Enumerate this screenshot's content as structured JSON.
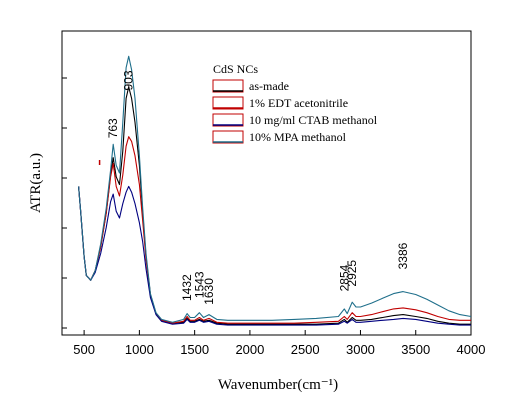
{
  "chart_data": {
    "type": "line",
    "xlabel": "Wavenumber(cm⁻¹)",
    "ylabel": "ATR(a.u.)",
    "xlim": [
      300,
      4000
    ],
    "x_ticks": [
      "500",
      "1000",
      "1500",
      "2000",
      "2500",
      "3000",
      "3500",
      "4000"
    ],
    "y_ticks_labeled": false,
    "legend_title": "CdS NCs",
    "legend_position": "top-right",
    "annotations": [
      {
        "text": "763",
        "x": 763,
        "y": 192
      },
      {
        "text": "903",
        "x": 903,
        "y": 242
      },
      {
        "text": "1432",
        "x": 1432,
        "y": 22
      },
      {
        "text": "1543",
        "x": 1543,
        "y": 25
      },
      {
        "text": "1630",
        "x": 1630,
        "y": 18
      },
      {
        "text": "2854",
        "x": 2854,
        "y": 32
      },
      {
        "text": "2925",
        "x": 2925,
        "y": 37
      },
      {
        "text": "3386",
        "x": 3386,
        "y": 55
      }
    ],
    "series": [
      {
        "name": "as-made",
        "color": "#000000",
        "x": [
          450,
          470,
          500,
          520,
          560,
          600,
          650,
          700,
          740,
          763,
          790,
          820,
          850,
          880,
          903,
          930,
          960,
          1000,
          1030,
          1060,
          1100,
          1150,
          1200,
          1300,
          1400,
          1432,
          1460,
          1500,
          1543,
          1580,
          1630,
          1700,
          1800,
          1900,
          2000,
          2200,
          2400,
          2600,
          2800,
          2854,
          2880,
          2925,
          2960,
          3000,
          3100,
          3200,
          3300,
          3386,
          3500,
          3600,
          3700,
          3800,
          3900,
          4000
        ],
        "y": [
          148,
          120,
          75,
          55,
          50,
          60,
          85,
          120,
          160,
          178,
          158,
          150,
          185,
          240,
          252,
          240,
          215,
          170,
          120,
          75,
          35,
          15,
          8,
          5,
          6,
          10,
          7,
          7,
          9,
          7,
          8,
          5,
          4,
          4,
          4,
          4,
          4,
          4,
          5,
          9,
          6,
          11,
          8,
          8,
          9,
          11,
          13,
          14,
          12,
          10,
          7,
          5,
          4,
          4
        ]
      },
      {
        "name": "1% EDT acetonitrile",
        "color": "#c00000",
        "x": [
          450,
          470,
          500,
          520,
          560,
          600,
          650,
          700,
          740,
          763,
          790,
          820,
          850,
          880,
          903,
          930,
          960,
          1000,
          1030,
          1060,
          1100,
          1150,
          1200,
          1300,
          1400,
          1432,
          1460,
          1500,
          1543,
          1580,
          1630,
          1700,
          1800,
          1900,
          2000,
          2200,
          2400,
          2600,
          2800,
          2854,
          2880,
          2925,
          2960,
          3000,
          3100,
          3200,
          3300,
          3386,
          3500,
          3600,
          3700,
          3800,
          3900,
          4000
        ],
        "y": [
          148,
          120,
          75,
          55,
          50,
          60,
          85,
          120,
          158,
          172,
          148,
          138,
          160,
          190,
          200,
          195,
          180,
          150,
          112,
          72,
          35,
          15,
          8,
          5,
          7,
          12,
          8,
          8,
          11,
          8,
          10,
          6,
          5,
          5,
          5,
          5,
          5,
          6,
          7,
          12,
          9,
          16,
          12,
          12,
          14,
          17,
          20,
          21,
          19,
          16,
          12,
          9,
          8,
          8
        ]
      },
      {
        "name": "10 mg/ml CTAB methanol",
        "color": "#000080",
        "x": [
          450,
          470,
          500,
          520,
          560,
          600,
          650,
          700,
          740,
          763,
          790,
          820,
          850,
          880,
          903,
          930,
          960,
          1000,
          1030,
          1060,
          1100,
          1150,
          1200,
          1300,
          1400,
          1432,
          1460,
          1500,
          1543,
          1580,
          1630,
          1700,
          1800,
          1900,
          2000,
          2200,
          2400,
          2600,
          2800,
          2854,
          2880,
          2925,
          2960,
          3000,
          3100,
          3200,
          3300,
          3386,
          3500,
          3600,
          3700,
          3800,
          3900,
          4000
        ],
        "y": [
          148,
          120,
          75,
          55,
          50,
          58,
          78,
          105,
          132,
          140,
          122,
          115,
          130,
          142,
          148,
          142,
          130,
          110,
          90,
          62,
          32,
          14,
          7,
          4,
          5,
          9,
          6,
          6,
          8,
          6,
          7,
          4,
          3,
          3,
          3,
          3,
          3,
          3,
          4,
          7,
          5,
          9,
          6,
          6,
          7,
          8,
          9,
          10,
          9,
          7,
          5,
          4,
          3,
          3
        ]
      },
      {
        "name": "10% MPA methanol",
        "color": "#1f6f8b",
        "x": [
          450,
          470,
          500,
          520,
          560,
          600,
          650,
          700,
          740,
          763,
          790,
          820,
          850,
          880,
          903,
          930,
          960,
          1000,
          1030,
          1060,
          1100,
          1150,
          1200,
          1300,
          1400,
          1432,
          1460,
          1500,
          1543,
          1580,
          1630,
          1700,
          1800,
          1900,
          2000,
          2200,
          2400,
          2600,
          2800,
          2854,
          2880,
          2925,
          2960,
          3000,
          3100,
          3200,
          3300,
          3386,
          3500,
          3600,
          3700,
          3800,
          3900,
          4000
        ],
        "y": [
          148,
          120,
          75,
          55,
          50,
          60,
          88,
          125,
          165,
          192,
          170,
          162,
          215,
          272,
          284,
          270,
          240,
          180,
          125,
          78,
          36,
          16,
          9,
          6,
          9,
          15,
          11,
          11,
          16,
          11,
          14,
          9,
          8,
          8,
          8,
          8,
          9,
          10,
          12,
          20,
          15,
          27,
          22,
          22,
          26,
          31,
          36,
          38,
          35,
          30,
          24,
          18,
          14,
          12
        ]
      }
    ]
  }
}
